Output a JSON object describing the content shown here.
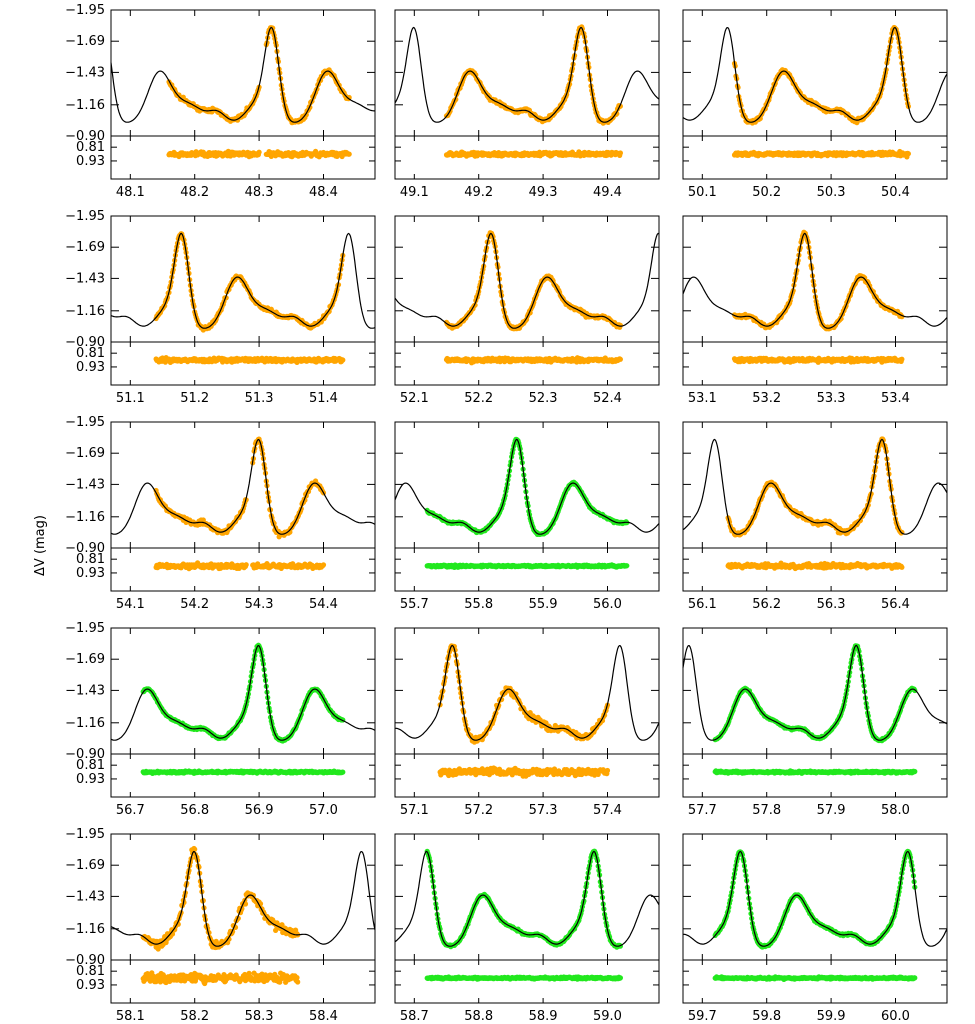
{
  "chart_data": {
    "type": "line",
    "ylabel": "ΔV (mag)",
    "top_panel": {
      "ylim": [
        -0.9,
        -1.95
      ],
      "yticks": [
        "-1.95",
        "-1.69",
        "-1.43",
        "-1.16",
        "-0.90"
      ]
    },
    "residual_panel": {
      "yticks": [
        "0.81",
        "0.93"
      ]
    },
    "colors": {
      "orange": "#FFA500",
      "green": "#22E81E",
      "model": "#000000",
      "axis": "#000000"
    },
    "panels": [
      {
        "x0": 48.07,
        "xlim": [
          48.07,
          48.48
        ],
        "data_range": [
          48.16,
          48.44
        ],
        "color": "orange",
        "xticks": [
          "48.1",
          "48.2",
          "48.3",
          "48.4"
        ],
        "gap": [
          48.3,
          48.31
        ],
        "noise": 0.009
      },
      {
        "x0": 49.07,
        "xlim": [
          49.07,
          49.48
        ],
        "data_range": [
          49.15,
          49.42
        ],
        "color": "orange",
        "xticks": [
          "49.1",
          "49.2",
          "49.3",
          "49.4"
        ],
        "noise": 0.008
      },
      {
        "x0": 50.07,
        "xlim": [
          50.07,
          50.48
        ],
        "data_range": [
          50.15,
          50.42
        ],
        "color": "orange",
        "xticks": [
          "50.1",
          "50.2",
          "50.3",
          "50.4"
        ],
        "noise": 0.008
      },
      {
        "x0": 51.07,
        "xlim": [
          51.07,
          51.48
        ],
        "data_range": [
          51.14,
          51.43
        ],
        "color": "orange",
        "xticks": [
          "51.1",
          "51.2",
          "51.3",
          "51.4"
        ],
        "noise": 0.008
      },
      {
        "x0": 52.07,
        "xlim": [
          52.07,
          52.48
        ],
        "data_range": [
          52.15,
          52.42
        ],
        "color": "orange",
        "xticks": [
          "52.1",
          "52.2",
          "52.3",
          "52.4"
        ],
        "noise": 0.008
      },
      {
        "x0": 53.07,
        "xlim": [
          53.07,
          53.48
        ],
        "data_range": [
          53.15,
          53.41
        ],
        "color": "orange",
        "xticks": [
          "53.1",
          "53.2",
          "53.3",
          "53.4"
        ],
        "noise": 0.008
      },
      {
        "x0": 54.07,
        "xlim": [
          54.07,
          54.48
        ],
        "data_range": [
          54.14,
          54.4
        ],
        "color": "orange",
        "xticks": [
          "54.1",
          "54.2",
          "54.3",
          "54.4"
        ],
        "gap": [
          54.28,
          54.29
        ],
        "noise": 0.009
      },
      {
        "x0": 55.67,
        "xlim": [
          55.67,
          56.08
        ],
        "data_range": [
          55.72,
          56.03
        ],
        "color": "green",
        "xticks": [
          "55.7",
          "55.8",
          "55.9",
          "56.0"
        ],
        "noise": 0.004
      },
      {
        "x0": 56.07,
        "xlim": [
          56.07,
          56.48
        ],
        "data_range": [
          56.14,
          56.41
        ],
        "color": "orange",
        "xticks": [
          "56.1",
          "56.2",
          "56.3",
          "56.4"
        ],
        "noise": 0.009
      },
      {
        "x0": 56.67,
        "xlim": [
          56.67,
          57.08
        ],
        "data_range": [
          56.72,
          57.03
        ],
        "color": "green",
        "xticks": [
          "56.7",
          "56.8",
          "56.9",
          "57.0"
        ],
        "noise": 0.004
      },
      {
        "x0": 57.07,
        "xlim": [
          57.07,
          57.48
        ],
        "data_range": [
          57.14,
          57.4
        ],
        "color": "orange",
        "xticks": [
          "57.1",
          "57.2",
          "57.3",
          "57.4"
        ],
        "noise": 0.014
      },
      {
        "x0": 57.67,
        "xlim": [
          57.67,
          58.08
        ],
        "data_range": [
          57.72,
          58.03
        ],
        "color": "green",
        "xticks": [
          "57.7",
          "57.8",
          "57.9",
          "58.0"
        ],
        "noise": 0.004
      },
      {
        "x0": 58.07,
        "xlim": [
          58.07,
          58.48
        ],
        "data_range": [
          58.12,
          58.36
        ],
        "color": "orange",
        "xticks": [
          "58.1",
          "58.2",
          "58.3",
          "58.4"
        ],
        "noise": 0.018
      },
      {
        "x0": 58.67,
        "xlim": [
          58.67,
          59.08
        ],
        "data_range": [
          58.72,
          59.02
        ],
        "color": "green",
        "xticks": [
          "58.7",
          "58.8",
          "58.9",
          "59.0"
        ],
        "noise": 0.004
      },
      {
        "x0": 59.67,
        "xlim": [
          59.67,
          60.08
        ],
        "data_range": [
          59.72,
          60.03
        ],
        "color": "green",
        "xticks": [
          "59.7",
          "59.8",
          "59.9",
          "60.0"
        ],
        "noise": 0.004
      }
    ]
  }
}
